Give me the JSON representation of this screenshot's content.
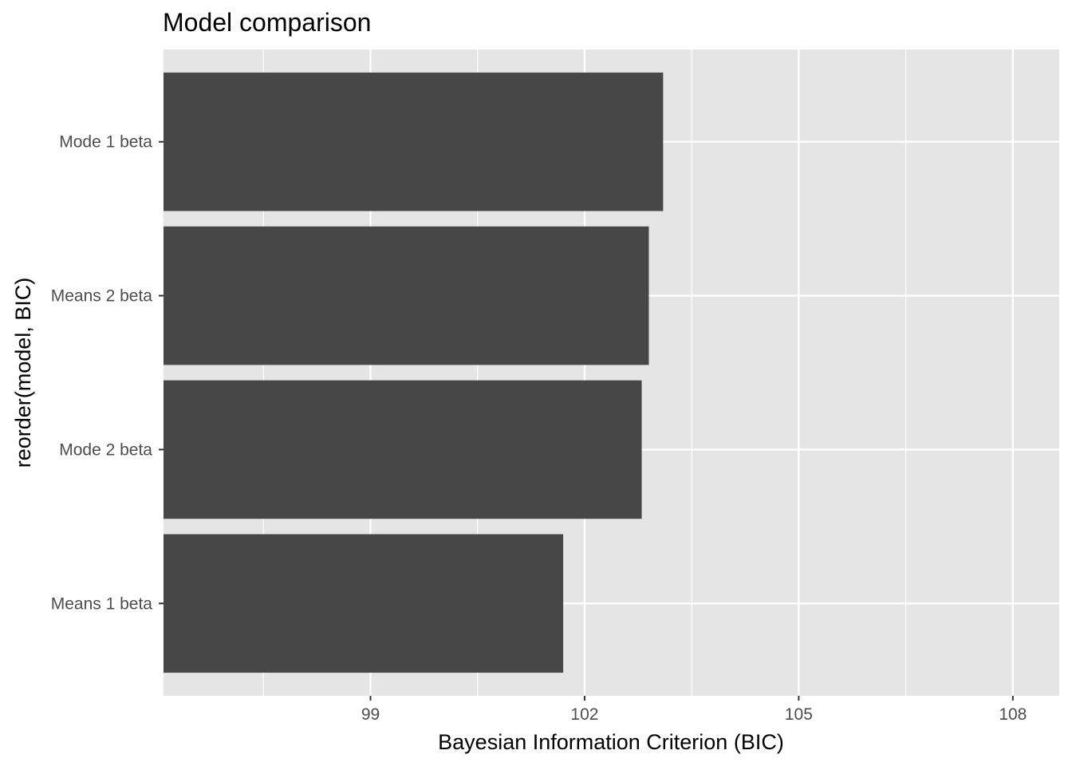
{
  "chart_data": {
    "type": "bar",
    "orientation": "horizontal",
    "title": "Model comparison",
    "xlabel": "Bayesian Information Criterion (BIC)",
    "ylabel": "reorder(model, BIC)",
    "categories": [
      "Means 1 beta",
      "Mode 2 beta",
      "Means 2 beta",
      "Mode 1 beta"
    ],
    "values": [
      101.7,
      102.8,
      102.9,
      103.1
    ],
    "xlim": [
      96.1,
      108.65
    ],
    "xticks": [
      99,
      102,
      105,
      108
    ],
    "xtick_labels": [
      "99",
      "102",
      "105",
      "108"
    ],
    "grid": true,
    "colors": {
      "panel": "#e5e5e5",
      "grid": "#ffffff",
      "bar": "#474747",
      "tick_text": "#4d4d4d",
      "tick_mark": "#333333"
    }
  }
}
